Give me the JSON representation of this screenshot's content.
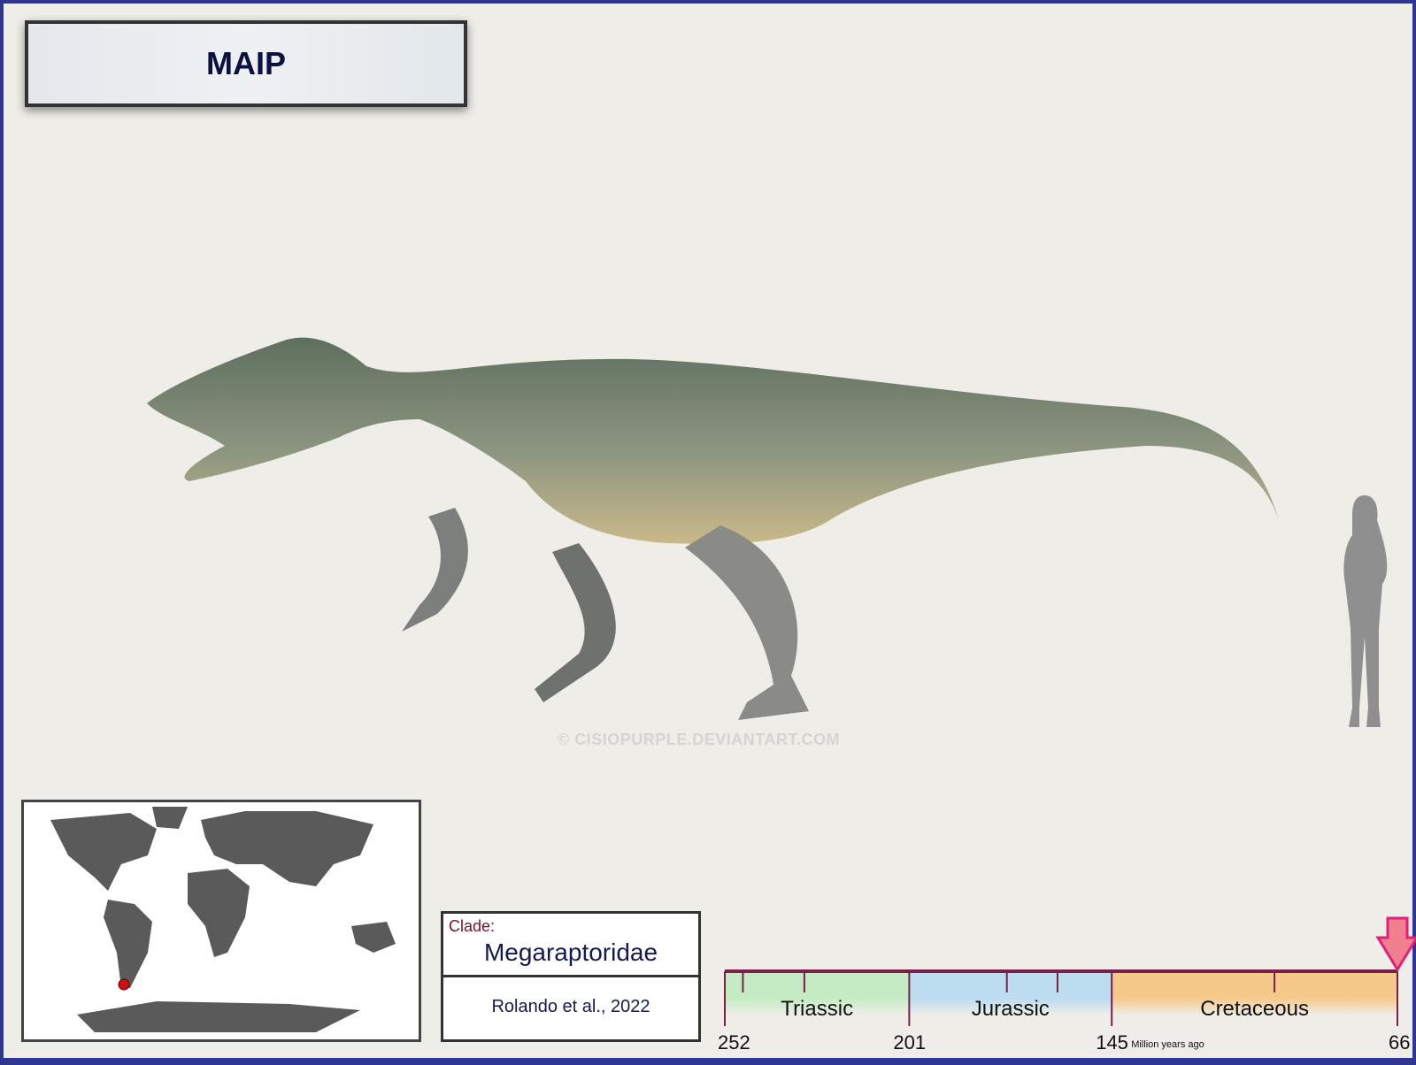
{
  "title": "MAIP",
  "watermark": "© CISIOPURPLE.DEVIANTART.COM",
  "clade": {
    "label": "Clade:",
    "name": "Megaraptoridae",
    "reference": "Rolando et al., 2022"
  },
  "timeline": {
    "unit_label": "Million years ago",
    "periods": [
      {
        "name": "Triassic",
        "start": 252,
        "end": 201,
        "color": "#c4ebc4"
      },
      {
        "name": "Jurassic",
        "start": 201,
        "end": 145,
        "color": "#bcdcef"
      },
      {
        "name": "Cretaceous",
        "start": 145,
        "end": 66,
        "color": "#f5c98a"
      }
    ],
    "boundary_labels": [
      "252",
      "201",
      "145",
      "66"
    ],
    "minor_ticks_ma": [
      247,
      230,
      174,
      160,
      100
    ],
    "marker_ma": 66,
    "line_color": "#7a1f4a",
    "marker_color": "#f08090"
  },
  "map": {
    "location_marker": "southern South America (Patagonia)",
    "marker_color": "#d01010"
  }
}
